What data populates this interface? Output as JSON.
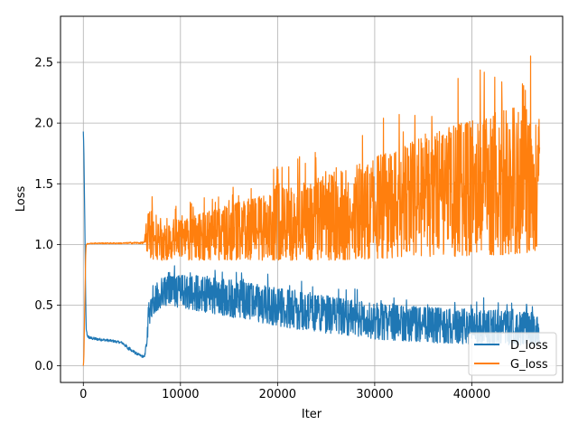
{
  "chart_data": {
    "type": "line",
    "title": "",
    "xlabel": "Iter",
    "ylabel": "Loss",
    "xlim": [
      -2350,
      49350
    ],
    "ylim": [
      -0.137,
      2.88
    ],
    "xticks": [
      0,
      10000,
      20000,
      30000,
      40000
    ],
    "xtick_labels": [
      "0",
      "10000",
      "20000",
      "30000",
      "40000"
    ],
    "yticks": [
      0.0,
      0.5,
      1.0,
      1.5,
      2.0,
      2.5
    ],
    "ytick_labels": [
      "0.0",
      "0.5",
      "1.0",
      "1.5",
      "2.0",
      "2.5"
    ],
    "grid": true,
    "legend_position": "lower-right",
    "series": [
      {
        "name": "D_loss",
        "color": "#1f77b4",
        "x": [
          0,
          50,
          150,
          250,
          300,
          400,
          500,
          800,
          1200,
          2000,
          3000,
          4000,
          4500,
          5000,
          5500,
          6000,
          6300,
          6500,
          6700,
          7000,
          7500,
          8000,
          9000,
          10000,
          12000,
          14000,
          16000,
          18000,
          20000,
          22000,
          24000,
          26000,
          28000,
          30000,
          32000,
          34000,
          36000,
          38000,
          40000,
          42000,
          44000,
          46000,
          47000
        ],
        "lower": [
          1.93,
          1.8,
          1.2,
          0.5,
          0.3,
          0.24,
          0.225,
          0.215,
          0.21,
          0.205,
          0.195,
          0.18,
          0.14,
          0.11,
          0.09,
          0.07,
          0.065,
          0.15,
          0.28,
          0.4,
          0.45,
          0.48,
          0.49,
          0.48,
          0.45,
          0.42,
          0.39,
          0.36,
          0.33,
          0.3,
          0.28,
          0.26,
          0.24,
          0.22,
          0.21,
          0.2,
          0.19,
          0.18,
          0.18,
          0.17,
          0.17,
          0.17,
          0.17
        ],
        "upper": [
          1.93,
          1.8,
          1.2,
          0.5,
          0.3,
          0.27,
          0.25,
          0.24,
          0.235,
          0.225,
          0.215,
          0.2,
          0.17,
          0.14,
          0.11,
          0.09,
          0.085,
          0.22,
          0.5,
          0.65,
          0.7,
          0.72,
          0.74,
          0.75,
          0.74,
          0.72,
          0.7,
          0.67,
          0.64,
          0.61,
          0.58,
          0.56,
          0.54,
          0.52,
          0.5,
          0.49,
          0.48,
          0.47,
          0.47,
          0.46,
          0.45,
          0.44,
          0.44
        ]
      },
      {
        "name": "G_loss",
        "color": "#ff7f0e",
        "x": [
          0,
          50,
          150,
          250,
          300,
          400,
          600,
          1000,
          2000,
          3000,
          4000,
          5000,
          6000,
          6300,
          6500,
          7000,
          8000,
          10000,
          12000,
          14000,
          16000,
          18000,
          20000,
          22000,
          24000,
          26000,
          28000,
          30000,
          32000,
          34000,
          36000,
          38000,
          40000,
          42000,
          44000,
          46000,
          47000
        ],
        "lower": [
          0.0,
          0.05,
          0.5,
          0.95,
          0.995,
          1.0,
          1.005,
          1.005,
          1.005,
          1.005,
          1.005,
          1.005,
          1.005,
          1.005,
          0.95,
          0.88,
          0.87,
          0.87,
          0.87,
          0.87,
          0.87,
          0.87,
          0.87,
          0.87,
          0.87,
          0.87,
          0.88,
          0.88,
          0.89,
          0.9,
          0.9,
          0.9,
          0.91,
          0.91,
          0.92,
          0.93,
          0.94
        ],
        "upper": [
          0.0,
          0.05,
          0.5,
          0.95,
          0.995,
          1.01,
          1.01,
          1.015,
          1.015,
          1.015,
          1.015,
          1.02,
          1.02,
          1.03,
          1.25,
          1.28,
          1.22,
          1.2,
          1.25,
          1.3,
          1.35,
          1.4,
          1.45,
          1.5,
          1.55,
          1.6,
          1.65,
          1.72,
          1.78,
          1.85,
          1.92,
          1.98,
          2.02,
          2.08,
          2.12,
          2.15,
          2.18
        ]
      }
    ]
  }
}
